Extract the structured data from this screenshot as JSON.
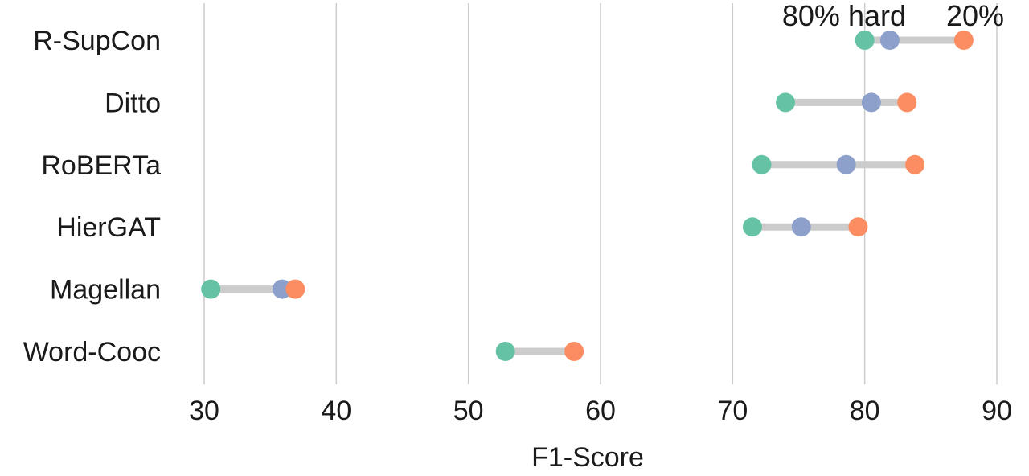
{
  "chart_data": {
    "type": "dumbbell",
    "xlabel": "F1-Score",
    "xlim": [
      27,
      91.5
    ],
    "xticks": [
      30,
      40,
      50,
      60,
      70,
      80,
      90
    ],
    "grid": "vertical",
    "categories": [
      "R-SupCon",
      "Ditto",
      "RoBERTa",
      "HierGAT",
      "Magellan",
      "Word-Cooc"
    ],
    "series": [
      {
        "name": "80% hard",
        "color": "#66c2a5",
        "values": [
          80.0,
          74.0,
          72.2,
          71.5,
          30.5,
          52.8
        ]
      },
      {
        "name": "",
        "color": "#8da0cb",
        "values": [
          81.9,
          80.5,
          78.6,
          75.2,
          35.9,
          null
        ]
      },
      {
        "name": "20%",
        "color": "#fc8d62",
        "values": [
          87.5,
          83.2,
          83.8,
          79.5,
          36.9,
          58.0
        ]
      }
    ],
    "legend": {
      "placement": "top-right"
    }
  }
}
